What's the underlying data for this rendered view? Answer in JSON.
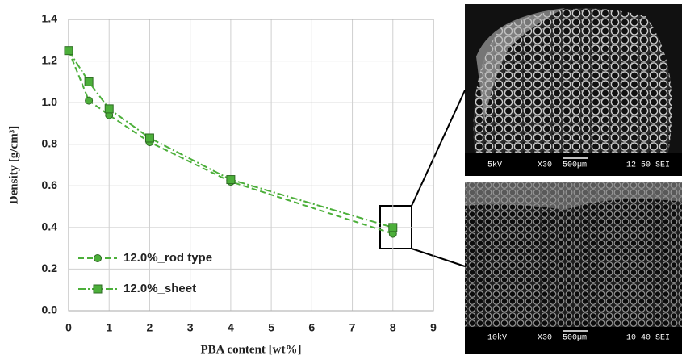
{
  "chart_data": {
    "type": "line",
    "x_label": "PBA content [wt%]",
    "y_label": "Density [g/cm³]",
    "series": [
      {
        "name": "12.0%_rod type",
        "color": "#4caf3a",
        "marker": "circle",
        "dash": "dash",
        "x": [
          0,
          0.5,
          1,
          2,
          4,
          8
        ],
        "values": [
          1.25,
          1.01,
          0.94,
          0.81,
          0.62,
          0.37
        ]
      },
      {
        "name": "12.0%_sheet",
        "color": "#4caf3a",
        "marker": "square",
        "dash": "dashdot",
        "x": [
          0,
          0.5,
          1,
          2,
          4,
          8
        ],
        "values": [
          1.25,
          1.1,
          0.97,
          0.83,
          0.63,
          0.4
        ]
      }
    ],
    "xlim": [
      0,
      9
    ],
    "xticks": [
      0,
      1,
      2,
      3,
      4,
      5,
      6,
      7,
      8,
      9
    ],
    "ylim": [
      0,
      1.4
    ],
    "yticks": [
      {
        "value": 0,
        "label": "0.0"
      },
      0.2,
      0.4,
      0.6,
      0.8,
      {
        "value": 1,
        "label": "1.0"
      },
      1.2,
      1.4
    ],
    "grid": true,
    "legend": "lower left"
  },
  "micrographs": [
    {
      "voltage": "5kV",
      "magnification": "X30",
      "scale": "500µm",
      "code": "12 50 SEI"
    },
    {
      "voltage": "10kV",
      "magnification": "X30",
      "scale": "500µm",
      "code": "10 40 SEI"
    }
  ]
}
